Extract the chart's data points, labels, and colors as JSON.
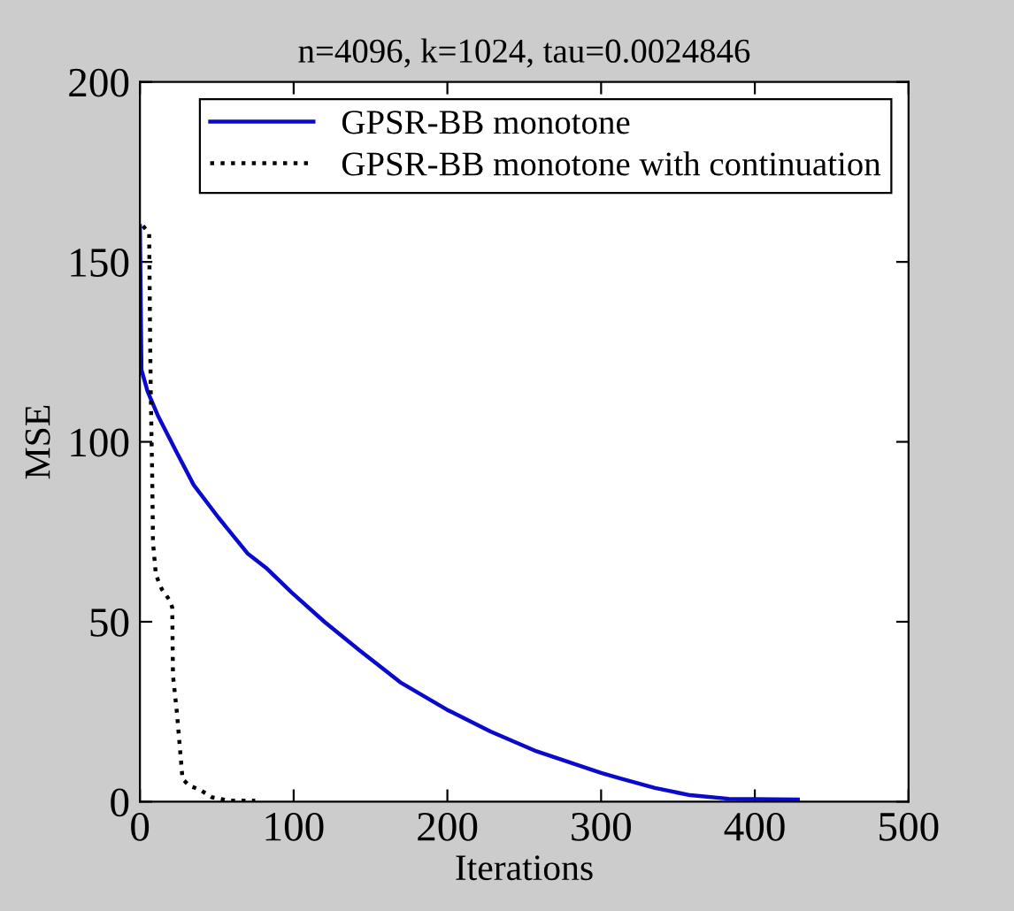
{
  "chart_data": {
    "type": "line",
    "title": "n=4096, k=1024, tau=0.0024846",
    "xlabel": "Iterations",
    "ylabel": "MSE",
    "xlim": [
      0,
      500
    ],
    "ylim": [
      0,
      200
    ],
    "xticks": [
      0,
      100,
      200,
      300,
      400,
      500
    ],
    "yticks": [
      0,
      50,
      100,
      150,
      200
    ],
    "grid": false,
    "legend": "top right",
    "marker": "none",
    "series": [
      {
        "name": "GPSR-BB monotone",
        "color": "#0a0acd",
        "line_style": "solid",
        "x": [
          0,
          1,
          5,
          12,
          24,
          35,
          51,
          70,
          82,
          99,
          120,
          143,
          170,
          200,
          228,
          258,
          300,
          312,
          335,
          358,
          383,
          428
        ],
        "values": [
          160,
          120,
          114,
          107,
          97,
          88,
          79,
          69,
          65,
          58,
          50,
          42,
          33,
          25.5,
          19.5,
          14,
          8,
          6.5,
          3.8,
          1.8,
          0.8,
          0.6
        ]
      },
      {
        "name": "GPSR-BB monotone with continuation",
        "color": "#000000",
        "line_style": "dotted",
        "x": [
          2,
          6,
          6.6,
          7,
          8,
          8.5,
          10.4,
          14.3,
          19.3,
          21,
          21.5,
          24,
          26,
          27.7,
          32,
          39,
          47,
          58,
          75
        ],
        "values": [
          160,
          158,
          130,
          115,
          90,
          72,
          63,
          59,
          56,
          54,
          35,
          25,
          15,
          6.3,
          4.5,
          3.3,
          1.2,
          0.3,
          0.3
        ]
      }
    ]
  }
}
